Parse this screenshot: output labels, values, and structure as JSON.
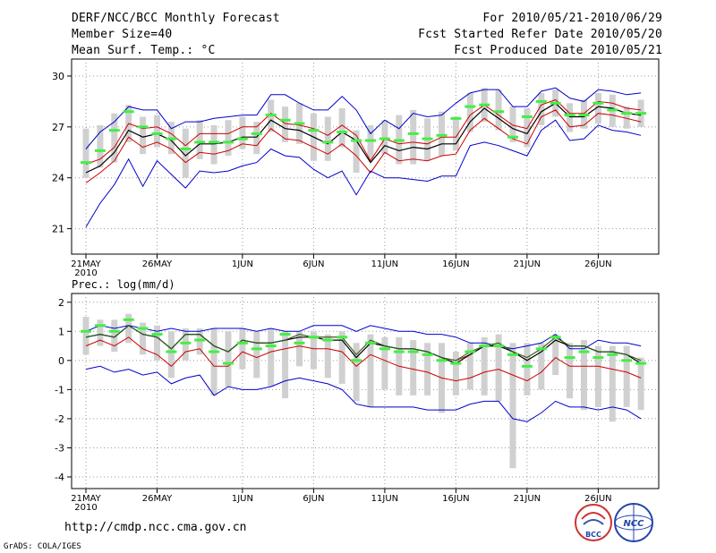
{
  "header": {
    "left": [
      "DERF/NCC/BCC Monthly Forecast",
      "Member Size=40",
      "Mean Surf. Temp.: °C"
    ],
    "right": [
      "For 2010/05/21-2010/06/29",
      "Fcst Started Refer Date 2010/05/20",
      "Fcst Produced Date 2010/05/21"
    ]
  },
  "footer": {
    "url": "http://cmdp.ncc.cma.gov.cn",
    "grads": "GrADS: COLA/IGES",
    "logo_bcc": "BCC",
    "logo_ncc": "NCC"
  },
  "colors": {
    "max_line": "#0000cc",
    "min_line": "#0000cc",
    "mean_line": "#000000",
    "upper_line": "#cc0000",
    "lower_line": "#cc0000",
    "box": "#d0d0d0",
    "obs_mark": "#44ee44",
    "grid": "#999999"
  },
  "chart_data": [
    {
      "type": "box-line",
      "title": "Mean Surf. Temp.: °C",
      "ylim": [
        19.5,
        31
      ],
      "yticks": [
        21,
        24,
        27,
        30
      ],
      "x_tick_labels": [
        "21MAY",
        "26MAY",
        "1JUN",
        "6JUN",
        "11JUN",
        "16JUN",
        "21JUN",
        "26JUN"
      ],
      "x_tick_days": [
        0,
        5,
        11,
        16,
        21,
        26,
        31,
        36
      ],
      "year_label": "2010",
      "days": 40,
      "series": [
        {
          "name": "max",
          "values": [
            25.7,
            26.7,
            27.3,
            28.2,
            28.0,
            28.0,
            26.9,
            27.3,
            27.3,
            27.5,
            27.6,
            27.7,
            27.7,
            28.9,
            28.9,
            28.4,
            28.0,
            28.0,
            28.8,
            28.0,
            26.6,
            27.4,
            26.9,
            27.8,
            27.6,
            27.7,
            28.4,
            29.0,
            29.2,
            29.2,
            28.2,
            28.2,
            29.1,
            29.3,
            28.7,
            28.5,
            29.2,
            29.1,
            28.9,
            29.0
          ]
        },
        {
          "name": "upper",
          "values": [
            24.8,
            25.1,
            25.8,
            27.2,
            26.9,
            27.0,
            26.6,
            25.9,
            26.6,
            26.6,
            26.6,
            27.0,
            27.0,
            27.8,
            27.2,
            27.1,
            26.9,
            26.5,
            27.1,
            26.5,
            25.0,
            26.3,
            26.0,
            26.1,
            26.0,
            26.4,
            26.4,
            27.7,
            28.3,
            27.7,
            27.1,
            26.9,
            28.3,
            28.6,
            27.8,
            27.8,
            28.5,
            28.4,
            28.1,
            28.0
          ]
        },
        {
          "name": "mean",
          "values": [
            24.3,
            24.7,
            25.5,
            26.8,
            26.4,
            26.6,
            26.2,
            25.3,
            26.0,
            26.0,
            26.1,
            26.4,
            26.4,
            27.4,
            26.9,
            26.8,
            26.4,
            26.0,
            26.7,
            26.2,
            24.9,
            25.9,
            25.6,
            25.8,
            25.7,
            26.0,
            26.0,
            27.3,
            28.1,
            27.5,
            26.9,
            26.6,
            27.9,
            28.4,
            27.6,
            27.6,
            28.2,
            28.1,
            27.8,
            27.7
          ]
        },
        {
          "name": "lower",
          "values": [
            23.7,
            24.3,
            25.0,
            26.4,
            25.8,
            26.1,
            25.7,
            24.9,
            25.5,
            25.4,
            25.6,
            26.0,
            25.9,
            26.9,
            26.3,
            26.2,
            25.8,
            25.4,
            26.0,
            25.3,
            24.3,
            25.5,
            25.0,
            25.1,
            25.0,
            25.3,
            25.4,
            26.8,
            27.5,
            26.9,
            26.3,
            26.0,
            27.6,
            28.0,
            27.0,
            27.1,
            27.8,
            27.7,
            27.5,
            27.3
          ]
        },
        {
          "name": "min",
          "values": [
            21.1,
            22.5,
            23.6,
            25.1,
            23.5,
            25.0,
            24.2,
            23.4,
            24.4,
            24.3,
            24.4,
            24.7,
            24.9,
            25.7,
            25.3,
            25.2,
            24.5,
            24.0,
            24.4,
            23.0,
            24.4,
            24.0,
            24.0,
            23.9,
            23.8,
            24.1,
            24.1,
            25.9,
            26.1,
            25.9,
            25.6,
            25.3,
            26.8,
            27.4,
            26.2,
            26.3,
            27.1,
            26.8,
            26.7,
            26.5
          ]
        }
      ],
      "box_low": [
        24.0,
        24.6,
        24.9,
        26.1,
        25.4,
        25.8,
        25.4,
        24.0,
        25.1,
        24.8,
        25.3,
        25.7,
        25.4,
        26.7,
        26.1,
        26.0,
        25.0,
        25.0,
        25.8,
        24.3,
        25.1,
        25.4,
        24.8,
        24.8,
        25.0,
        25.3,
        25.6,
        26.7,
        27.3,
        26.8,
        26.1,
        25.8,
        27.1,
        27.6,
        26.7,
        26.9,
        27.2,
        27.0,
        26.9,
        27.0
      ],
      "box_high": [
        26.9,
        27.1,
        27.8,
        28.3,
        27.6,
        27.7,
        27.3,
        26.9,
        27.4,
        27.1,
        27.4,
        27.6,
        27.3,
        28.6,
        28.2,
        28.4,
        27.8,
        27.6,
        28.1,
        26.8,
        27.1,
        27.4,
        27.7,
        28.0,
        27.5,
        27.9,
        27.6,
        29.0,
        29.3,
        29.2,
        28.2,
        28.1,
        29.0,
        29.2,
        28.4,
        28.6,
        29.0,
        28.9,
        28.2,
        28.6
      ],
      "obs": [
        24.9,
        25.6,
        26.8,
        27.9,
        27.0,
        26.6,
        26.3,
        25.7,
        26.1,
        26.1,
        26.1,
        26.3,
        26.6,
        27.7,
        27.4,
        27.2,
        26.8,
        26.1,
        26.7,
        26.2,
        26.2,
        26.3,
        26.2,
        26.6,
        26.3,
        26.5,
        27.5,
        28.2,
        28.3,
        27.9,
        26.4,
        27.6,
        28.5,
        28.4,
        27.7,
        27.7,
        28.4,
        28.0,
        27.8,
        27.8
      ]
    },
    {
      "type": "box-line",
      "title": "Prec.: log(mm/d)",
      "ylim": [
        -4.4,
        2.3
      ],
      "yticks": [
        -4,
        -3,
        -2,
        -1,
        0,
        1,
        2
      ],
      "x_tick_labels": [
        "21MAY",
        "26MAY",
        "1JUN",
        "6JUN",
        "11JUN",
        "16JUN",
        "21JUN",
        "26JUN"
      ],
      "x_tick_days": [
        0,
        5,
        11,
        16,
        21,
        26,
        31,
        36
      ],
      "year_label": "2010",
      "days": 40,
      "series": [
        {
          "name": "max",
          "values": [
            1.0,
            1.2,
            1.1,
            1.2,
            1.1,
            1.0,
            1.1,
            1.0,
            1.0,
            1.1,
            1.1,
            1.1,
            1.0,
            1.1,
            1.0,
            1.0,
            1.2,
            1.2,
            1.2,
            1.0,
            1.2,
            1.1,
            1.0,
            1.0,
            0.9,
            0.9,
            0.8,
            0.6,
            0.6,
            0.5,
            0.4,
            0.5,
            0.6,
            0.9,
            0.4,
            0.4,
            0.7,
            0.6,
            0.6,
            0.5
          ]
        },
        {
          "name": "upper",
          "values": [
            0.8,
            0.9,
            0.8,
            1.2,
            0.9,
            0.8,
            0.4,
            0.9,
            0.9,
            0.5,
            0.3,
            0.7,
            0.6,
            0.6,
            0.7,
            0.9,
            0.8,
            0.8,
            0.8,
            0.2,
            0.7,
            0.5,
            0.4,
            0.4,
            0.3,
            0.1,
            0.0,
            0.2,
            0.5,
            0.6,
            0.3,
            0.1,
            0.4,
            0.8,
            0.5,
            0.5,
            0.3,
            0.3,
            0.2,
            0.0
          ]
        },
        {
          "name": "mean",
          "values": [
            0.8,
            0.9,
            0.8,
            1.2,
            0.9,
            0.8,
            0.4,
            0.9,
            0.9,
            0.5,
            0.3,
            0.7,
            0.6,
            0.6,
            0.7,
            0.8,
            0.8,
            0.7,
            0.7,
            0.1,
            0.6,
            0.5,
            0.4,
            0.4,
            0.3,
            0.1,
            -0.1,
            0.2,
            0.5,
            0.5,
            0.3,
            0.0,
            0.3,
            0.7,
            0.5,
            0.5,
            0.3,
            0.3,
            0.2,
            -0.1
          ]
        },
        {
          "name": "lower",
          "values": [
            0.5,
            0.7,
            0.5,
            0.8,
            0.4,
            0.2,
            -0.2,
            0.3,
            0.4,
            -0.2,
            -0.2,
            0.3,
            0.1,
            0.3,
            0.4,
            0.5,
            0.4,
            0.4,
            0.3,
            -0.2,
            0.2,
            0.0,
            -0.2,
            -0.3,
            -0.4,
            -0.6,
            -0.7,
            -0.6,
            -0.4,
            -0.3,
            -0.5,
            -0.7,
            -0.4,
            0.1,
            -0.2,
            -0.2,
            -0.2,
            -0.3,
            -0.4,
            -0.6
          ]
        },
        {
          "name": "min",
          "values": [
            -0.3,
            -0.2,
            -0.4,
            -0.3,
            -0.5,
            -0.4,
            -0.8,
            -0.6,
            -0.5,
            -1.2,
            -0.9,
            -1.0,
            -1.0,
            -0.9,
            -0.7,
            -0.6,
            -0.7,
            -0.8,
            -1.0,
            -1.5,
            -1.6,
            -1.6,
            -1.6,
            -1.6,
            -1.7,
            -1.7,
            -1.7,
            -1.5,
            -1.4,
            -1.4,
            -2.0,
            -2.1,
            -1.8,
            -1.4,
            -1.6,
            -1.6,
            -1.7,
            -1.6,
            -1.7,
            -2.0
          ]
        },
        {
          "name": "obs_line",
          "values": [
            0.8,
            0.9,
            0.8,
            1.2,
            0.9,
            0.8,
            0.4,
            0.9,
            0.9,
            0.5,
            0.3,
            0.7,
            0.6,
            0.6,
            0.7,
            0.9,
            0.8,
            0.8,
            0.8,
            0.2,
            0.7,
            0.5,
            0.4,
            0.4,
            0.3,
            0.1,
            0.0,
            0.3,
            0.5,
            0.6,
            0.3,
            0.1,
            0.4,
            0.8,
            0.5,
            0.5,
            0.3,
            0.3,
            0.2,
            0.0
          ]
        }
      ],
      "box_low": [
        0.2,
        0.5,
        0.3,
        0.6,
        0.2,
        0.0,
        -0.6,
        0.0,
        0.2,
        -1.2,
        -0.9,
        -0.3,
        -0.6,
        -0.9,
        -1.3,
        -0.2,
        -0.3,
        -0.6,
        -0.8,
        -1.4,
        -1.6,
        -1.0,
        -1.2,
        -1.2,
        -1.2,
        -1.8,
        -1.2,
        -1.0,
        -1.2,
        -1.4,
        -3.7,
        -1.2,
        -1.0,
        -0.5,
        -1.3,
        -1.7,
        -1.6,
        -2.1,
        -1.6,
        -1.7
      ],
      "box_high": [
        1.5,
        1.4,
        1.4,
        1.6,
        1.3,
        1.2,
        1.0,
        1.1,
        1.1,
        1.1,
        1.0,
        1.1,
        1.0,
        1.1,
        1.0,
        1.0,
        1.0,
        0.9,
        1.0,
        0.6,
        0.9,
        0.8,
        0.8,
        0.7,
        0.6,
        0.6,
        0.3,
        0.6,
        0.8,
        0.9,
        0.6,
        0.6,
        0.6,
        0.9,
        0.6,
        0.7,
        0.5,
        0.5,
        0.5,
        0.1
      ],
      "obs": [
        1.0,
        1.2,
        1.0,
        1.4,
        1.1,
        0.9,
        0.3,
        0.6,
        0.7,
        0.3,
        -0.1,
        0.6,
        0.4,
        0.5,
        0.9,
        0.6,
        0.8,
        0.7,
        0.8,
        0.0,
        0.6,
        0.4,
        0.3,
        0.3,
        0.2,
        0.0,
        -0.1,
        0.3,
        0.5,
        0.5,
        0.2,
        -0.2,
        0.4,
        0.8,
        0.1,
        0.3,
        0.1,
        0.2,
        0.0,
        -0.1
      ]
    }
  ]
}
